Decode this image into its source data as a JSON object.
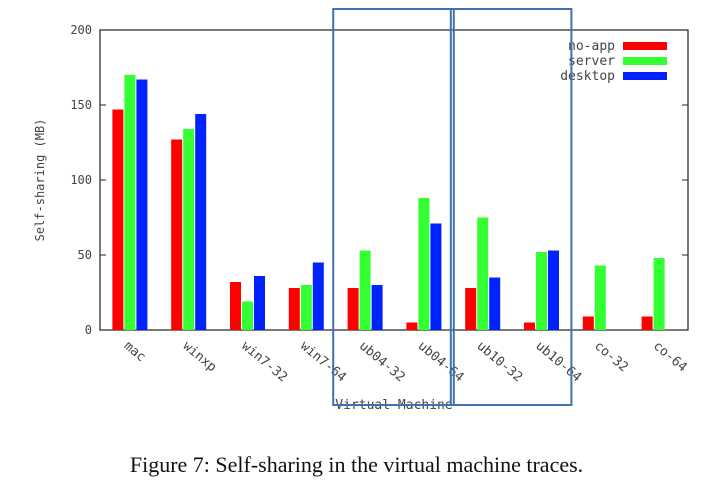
{
  "chart_data": {
    "type": "bar",
    "xlabel": "Virtual Machine",
    "ylabel": "Self-sharing (MB)",
    "ylim": [
      0,
      200
    ],
    "yticks": [
      0,
      50,
      100,
      150,
      200
    ],
    "categories": [
      "mac",
      "winxp",
      "win7-32",
      "win7-64",
      "ub04-32",
      "ub04-64",
      "ub10-32",
      "ub10-64",
      "co-32",
      "co-64"
    ],
    "series": [
      {
        "name": "no-app",
        "color": "#ff0000",
        "values": [
          147,
          127,
          32,
          28,
          28,
          5,
          28,
          5,
          9,
          9
        ]
      },
      {
        "name": "server",
        "color": "#33ff33",
        "values": [
          170,
          134,
          19,
          30,
          53,
          88,
          75,
          52,
          43,
          48
        ]
      },
      {
        "name": "desktop",
        "color": "#0022ff",
        "values": [
          167,
          144,
          36,
          45,
          30,
          71,
          35,
          53,
          0,
          0
        ]
      }
    ],
    "legend_position": "top-right",
    "grid": false,
    "highlight_box_color": "#3f72b0",
    "highlighted_categories": [
      [
        "ub04-32",
        "ub04-64"
      ],
      [
        "ub10-32",
        "ub10-64"
      ]
    ]
  },
  "caption": "Figure 7: Self-sharing in the virtual machine traces."
}
